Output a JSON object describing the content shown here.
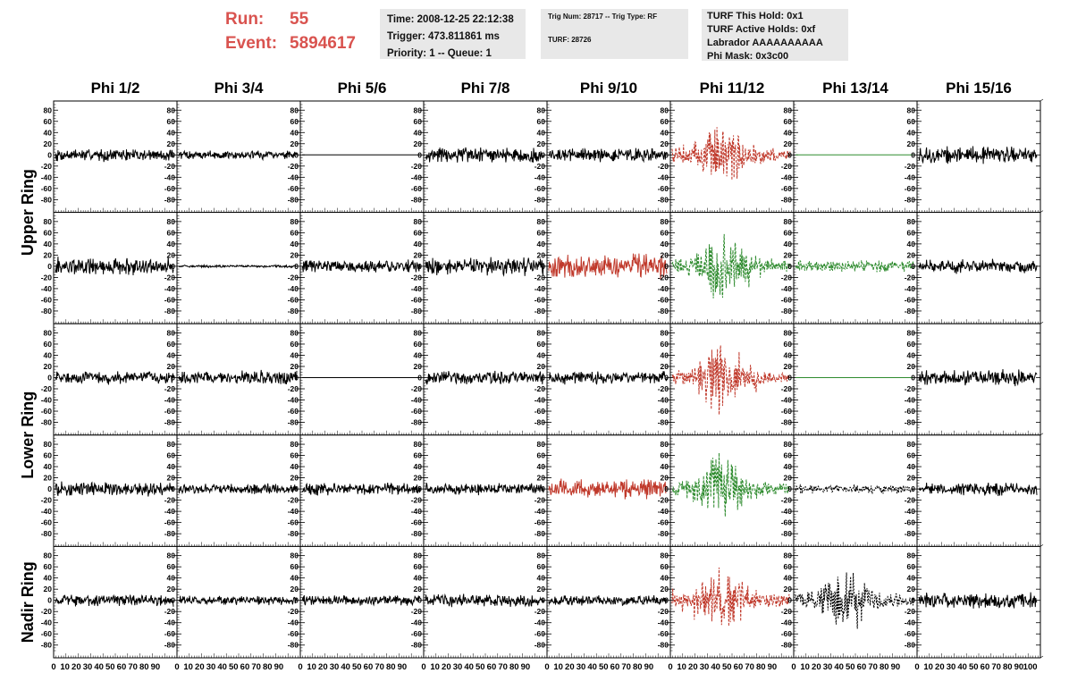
{
  "header": {
    "run_label": "Run:",
    "run_value": "55",
    "event_label": "Event:",
    "event_value": "5894617",
    "accent_color": "#d9534f",
    "panel_time": {
      "time": "Time: 2008-12-25 22:12:38",
      "trigger": "Trigger: 473.811861 ms",
      "priority": "Priority: 1 -- Queue: 1"
    },
    "panel_trig": {
      "trig": "Trig Num: 28717 -- Trig Type: RF",
      "turf": "TURF: 28726"
    },
    "panel_turf": {
      "hold": "TURF This Hold: 0x1",
      "active": "TURF Active Holds: 0xf",
      "labrador": "Labrador AAAAAAAAAA",
      "phimask": "Phi Mask: 0x3c00"
    }
  },
  "columns": [
    "Phi 1/2",
    "Phi 3/4",
    "Phi 5/6",
    "Phi 7/8",
    "Phi 9/10",
    "Phi 11/12",
    "Phi 13/14",
    "Phi 15/16"
  ],
  "row_groups": [
    "Upper Ring",
    "Lower Ring",
    "Nadir Ring"
  ],
  "y_ticks": [
    "80",
    "60",
    "40",
    "20",
    "0",
    "-20",
    "-40",
    "-60",
    "-80"
  ],
  "x_ticks": [
    "0",
    "10",
    "20",
    "30",
    "40",
    "50",
    "60",
    "70",
    "80",
    "90",
    "100"
  ],
  "colors": {
    "black": "#000000",
    "red": "#c0392b",
    "green": "#2e8b2e",
    "flat_black": "#000000",
    "flat_green": "#2e8b2e"
  },
  "traces": [
    [
      "black:10",
      "black:7",
      "flat_black",
      "black:12",
      "black:11",
      "red_burst",
      "flat_green",
      "black:13"
    ],
    [
      "black:14",
      "black:2",
      "black:10",
      "black:14",
      "red:19",
      "green_burst",
      "green:9",
      "black:11"
    ],
    [
      "black:10",
      "black:11",
      "flat_black",
      "black:11",
      "black:10",
      "red_burst",
      "flat_green",
      "black:12"
    ],
    [
      "black:11",
      "black:8",
      "black:10",
      "black:9",
      "red:15",
      "green_burst",
      "blackdash:7",
      "black:10"
    ],
    [
      "black:9",
      "black:7",
      "black:8",
      "black:10",
      "black:8",
      "red_burst",
      "blackdash_burst",
      "black:12"
    ]
  ]
}
